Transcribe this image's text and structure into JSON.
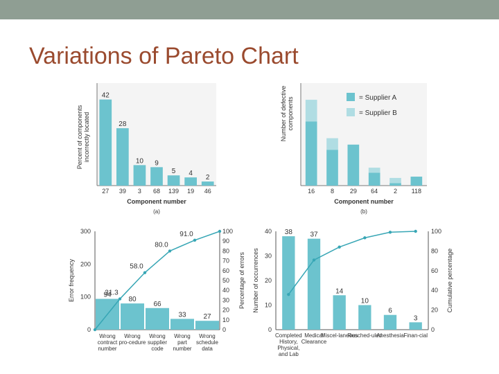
{
  "slide": {
    "title": "Variations of Pareto Chart"
  },
  "colors": {
    "bar": "#6cc3ce",
    "bar_light": "#b0dde3",
    "line": "#37a6b5",
    "title": "#9a4a2e",
    "topbar": "#8f9e93"
  },
  "chart_data": [
    {
      "id": "a",
      "type": "bar",
      "title": "",
      "caption": "(a)",
      "xlabel": "Component number",
      "ylabel": "Percent of components incorrectly located",
      "categories": [
        "27",
        "39",
        "3",
        "68",
        "139",
        "19",
        "46"
      ],
      "values": [
        42,
        28,
        10,
        9,
        5,
        4,
        2
      ],
      "ylim": [
        0,
        50
      ]
    },
    {
      "id": "b",
      "type": "bar",
      "stacked": true,
      "title": "",
      "caption": "(b)",
      "xlabel": "Component number",
      "ylabel": "Number of defective components",
      "categories": [
        "16",
        "8",
        "29",
        "64",
        "2",
        "118"
      ],
      "series": [
        {
          "name": "= Supplier A",
          "values": [
            50,
            28,
            32,
            10,
            2,
            7
          ]
        },
        {
          "name": "= Supplier B",
          "values": [
            17,
            9,
            0,
            4,
            4,
            0
          ]
        }
      ],
      "ylim": [
        0,
        80
      ],
      "legend": "top-right"
    },
    {
      "id": "c",
      "type": "bar",
      "title": "",
      "xlabel": "",
      "ylabel": "Error frequency",
      "ylabel_right": "Percentage of errors",
      "categories": [
        "Wrong contract number",
        "Wrong pro-cedure",
        "Wrong supplier code",
        "Wrong part number",
        "Wrong schedule data"
      ],
      "values": [
        94,
        80,
        66,
        33,
        27
      ],
      "value_labels": [
        "94",
        "80",
        "66",
        "33",
        "27"
      ],
      "cumulative": [
        31.3,
        58.0,
        80.0,
        91.0,
        100
      ],
      "cumulative_labels": [
        "31.3",
        "58.0",
        "80.0",
        "91.0",
        ""
      ],
      "ylim": [
        0,
        300
      ],
      "yticks": [
        "0",
        "100",
        "200",
        "300"
      ],
      "ylim_right": [
        0,
        100
      ],
      "yticks_right": [
        "10",
        "20",
        "30",
        "40",
        "50",
        "60",
        "70",
        "80",
        "90",
        "100"
      ]
    },
    {
      "id": "d",
      "type": "bar",
      "title": "",
      "xlabel": "",
      "ylabel": "Number of occurrences",
      "ylabel_right": "Cumulative percentage",
      "categories": [
        "Completed History, Physical, and Lab",
        "Medical Clearance",
        "Miscel-laneous",
        "Resched-uled",
        "Anesthesia",
        "Finan-cial"
      ],
      "values": [
        38,
        37,
        14,
        10,
        6,
        3
      ],
      "value_labels": [
        "38",
        "37",
        "14",
        "10",
        "6",
        "3"
      ],
      "cumulative": [
        35.8,
        70.8,
        84.0,
        93.4,
        99.1,
        100
      ],
      "ylim": [
        0,
        40
      ],
      "yticks": [
        "0",
        "10",
        "20",
        "30",
        "40"
      ],
      "ylim_right": [
        0,
        100
      ],
      "yticks_right": [
        "0",
        "20",
        "40",
        "60",
        "80",
        "100"
      ]
    }
  ]
}
